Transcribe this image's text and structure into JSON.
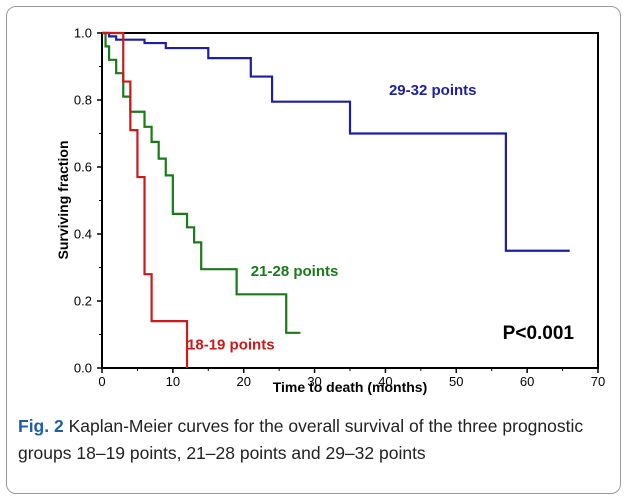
{
  "chart_data": {
    "type": "line",
    "xlabel": "Time to death (months)",
    "ylabel": "Surviving fraction",
    "xlim": [
      0,
      70
    ],
    "ylim": [
      0,
      1.0
    ],
    "x_ticks": [
      0,
      10,
      20,
      30,
      40,
      50,
      60,
      70
    ],
    "y_ticks": [
      "0.0",
      "0.2",
      "0.4",
      "0.6",
      "0.8",
      "1.0"
    ],
    "grid": false,
    "step": true,
    "annotation": "P<0.001",
    "series": [
      {
        "name": "29-32 points",
        "color": "#1e1ea0",
        "x": [
          0,
          1,
          2,
          3,
          6,
          9,
          15,
          21,
          24,
          35,
          57,
          66
        ],
        "y": [
          1.0,
          0.99,
          0.98,
          0.98,
          0.97,
          0.955,
          0.925,
          0.87,
          0.795,
          0.7,
          0.35,
          0.35
        ]
      },
      {
        "name": "21-28 points",
        "color": "#1a7a1a",
        "x": [
          0,
          0.5,
          1,
          2,
          3,
          4,
          6,
          7,
          8,
          9,
          10,
          12,
          13,
          14,
          19,
          26,
          28
        ],
        "y": [
          1.0,
          0.96,
          0.92,
          0.88,
          0.81,
          0.765,
          0.72,
          0.675,
          0.625,
          0.575,
          0.46,
          0.42,
          0.375,
          0.295,
          0.22,
          0.105,
          0.105
        ]
      },
      {
        "name": "18-19 points",
        "color": "#cc1a1a",
        "x": [
          0,
          2,
          3,
          4,
          5,
          6,
          7,
          12
        ],
        "y": [
          1.0,
          1.0,
          0.855,
          0.71,
          0.57,
          0.28,
          0.14,
          0.0
        ]
      }
    ]
  },
  "caption": {
    "label": "Fig. 2",
    "text": "Kaplan-Meier curves for the overall survival of the three prognostic groups 18–19 points, 21–28 points and 29–32 points"
  }
}
